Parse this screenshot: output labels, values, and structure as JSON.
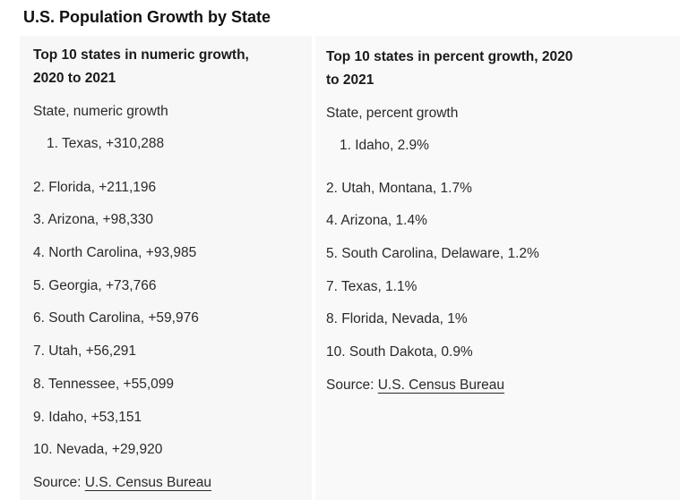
{
  "title": "U.S. Population Growth by State",
  "numeric": {
    "heading_line1": "Top 10 states in numeric growth,",
    "heading_line2": "2020 to 2021",
    "subheading": "State, numeric growth",
    "items": [
      "1. Texas, +310,288",
      "2. Florida, +211,196",
      "3. Arizona, +98,330",
      "4. North Carolina, +93,985",
      "5. Georgia, +73,766",
      "6. South Carolina, +59,976",
      "7. Utah, +56,291",
      "8. Tennessee, +55,099",
      "9. Idaho, +53,151",
      "10. Nevada, +29,920"
    ],
    "source_label": "Source: ",
    "source_link": "U.S. Census Bureau"
  },
  "percent": {
    "heading_line1": "Top 10 states in percent growth, 2020",
    "heading_line2": "to 2021",
    "subheading": "State, percent growth",
    "items": [
      "1. Idaho, 2.9%",
      "2. Utah, Montana, 1.7%",
      "4. Arizona, 1.4%",
      "5. South Carolina, Delaware, 1.2%",
      "7. Texas, 1.1%",
      "8. Florida, Nevada, 1%",
      "10. South Dakota, 0.9%"
    ],
    "source_label": "Source: ",
    "source_link": "U.S. Census Bureau"
  }
}
